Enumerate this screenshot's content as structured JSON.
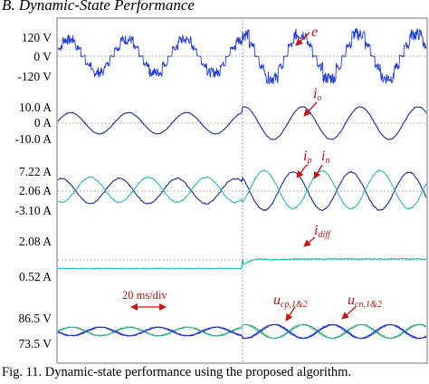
{
  "heading": "B.  Dynamic-State Performance",
  "caption": "Fig. 11. Dynamic-state performance using the proposed algorithm.",
  "time_base": "20 ms/div",
  "colors": {
    "dark_blue": "#1a2aa8",
    "bright_blue": "#1f3ad6",
    "cyan": "#2fb7b7",
    "green": "#4f9a3a",
    "annotation": "#cc1111"
  },
  "chart_data": [
    {
      "type": "line",
      "name": "e",
      "ticks": [
        {
          "label": "120 V",
          "value": 120
        },
        {
          "label": "0 V",
          "value": 0
        },
        {
          "label": "-120 V",
          "value": -120
        }
      ],
      "annotations": [
        {
          "base": "e",
          "sub": ""
        }
      ],
      "waveform": "multilevel PWM phase voltage, ~6.5 cycles per 2 divisions",
      "step_change": "amplitude steps up at the load change"
    },
    {
      "type": "line",
      "name": "io",
      "ticks": [
        {
          "label": "10.0 A",
          "value": 10.0
        },
        {
          "label": "0 A",
          "value": 0
        },
        {
          "label": "-10.0 A",
          "value": -10.0
        }
      ],
      "annotations": [
        {
          "base": "i",
          "sub": "o"
        }
      ],
      "before_amplitude": 6.5,
      "after_amplitude": 10.0
    },
    {
      "type": "line",
      "name": "ip, in",
      "ticks": [
        {
          "label": "7.22 A",
          "value": 7.22
        },
        {
          "label": "2.06 A",
          "value": 2.06
        },
        {
          "label": "-3.10 A",
          "value": -3.1
        }
      ],
      "annotations": [
        {
          "base": "i",
          "sub": "p"
        },
        {
          "base": "i",
          "sub": "n"
        }
      ],
      "before_amplitude": 3.4,
      "after_amplitude": 5.16
    },
    {
      "type": "line",
      "name": "idiff",
      "ticks": [
        {
          "label": "2.08 A",
          "value": 2.08
        },
        {
          "label": "0.52 A",
          "value": 0.52
        }
      ],
      "annotations": [
        {
          "base": "i",
          "sub": "diff"
        }
      ],
      "before_value": 0.9,
      "after_value": 1.32
    },
    {
      "type": "line",
      "name": "ucp, ucn",
      "ticks": [
        {
          "label": "86.5 V",
          "value": 86.5
        },
        {
          "label": "73.5 V",
          "value": 73.5
        }
      ],
      "annotations": [
        {
          "base": "u",
          "sub": "cp,1&2"
        },
        {
          "base": "u",
          "sub": "cn,1&2"
        }
      ],
      "before_ripple": 2.2,
      "after_ripple": 3.5
    }
  ]
}
